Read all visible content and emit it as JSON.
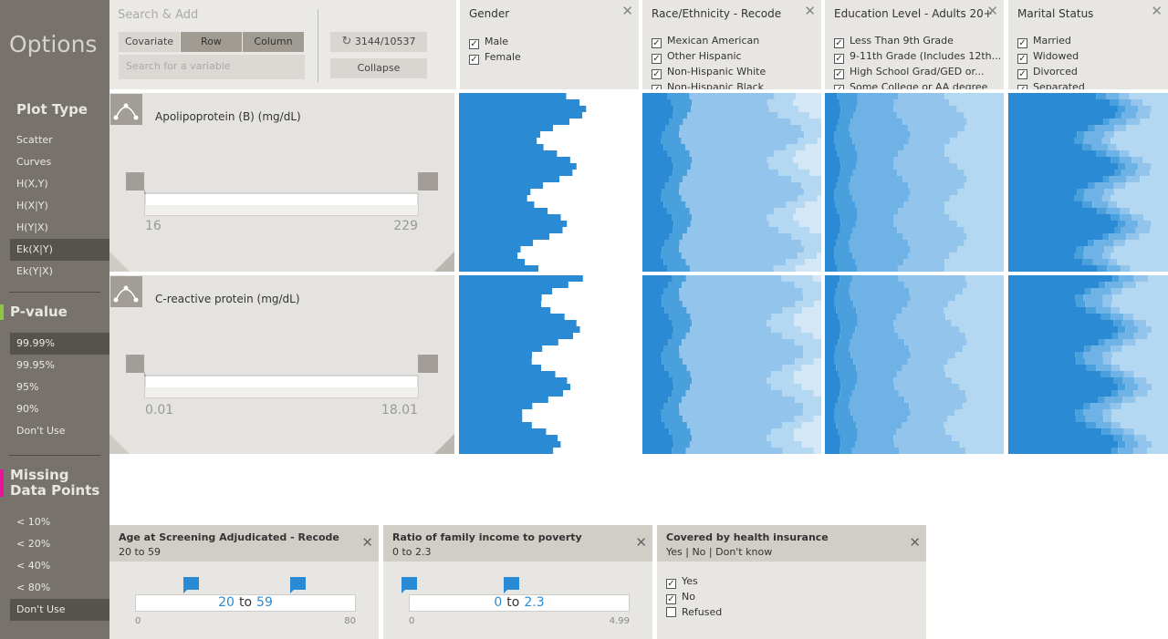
{
  "sidebar": {
    "title": "Options",
    "sections": [
      {
        "title": "Plot Type",
        "items": [
          "Scatter",
          "Curves",
          "H(X,Y)",
          "H(X|Y)",
          "H(Y|X)",
          "Ek(X|Y)",
          "Ek(Y|X)"
        ],
        "selected": 5
      },
      {
        "title": "P-value",
        "items": [
          "99.99%",
          "99.95%",
          "95%",
          "90%",
          "Don't Use"
        ],
        "selected": 0,
        "marker": "#8dc63f"
      },
      {
        "title": "Missing Data Points",
        "items": [
          "< 10%",
          "< 20%",
          "< 40%",
          "< 80%",
          "Don't Use"
        ],
        "selected": 4,
        "marker": "#e6139b"
      }
    ]
  },
  "toolbar": {
    "search_title": "Search & Add",
    "buttons": [
      "Covariate",
      "Row",
      "Column"
    ],
    "active_button": 0,
    "search_placeholder": "Search for a variable",
    "count": "3144/10537",
    "collapse": "Collapse"
  },
  "columns": [
    {
      "title": "Gender",
      "options": [
        "Male",
        "Female"
      ]
    },
    {
      "title": "Race/Ethnicity - Recode",
      "options": [
        "Mexican American",
        "Other Hispanic",
        "Non-Hispanic White",
        "Non-Hispanic Black"
      ]
    },
    {
      "title": "Education Level - Adults 20+",
      "options": [
        "Less Than 9th Grade",
        "9-11th Grade (Includes 12th...",
        "High School Grad/GED or...",
        "Some College or AA degree"
      ]
    },
    {
      "title": "Marital Status",
      "options": [
        "Married",
        "Widowed",
        "Divorced",
        "Separated"
      ]
    }
  ],
  "rows": [
    {
      "label": "Apolipoprotein (B) (mg/dL)",
      "min": "16",
      "max": "229"
    },
    {
      "label": "C-reactive protein (mg/dL)",
      "min": "0.01",
      "max": "18.01"
    }
  ],
  "filters": [
    {
      "title": "Age at Screening Adjudicated - Recode",
      "summary": "20 to 59",
      "type": "range",
      "low": "20",
      "joiner": "to",
      "high": "59",
      "min": "0",
      "max": "80"
    },
    {
      "title": "Ratio of family income to poverty",
      "summary": "0 to 2.3",
      "type": "range",
      "low": "0",
      "joiner": "to",
      "high": "2.3",
      "min": "0",
      "max": "4.99"
    },
    {
      "title": "Covered by health insurance",
      "summary": "Yes | No | Don't know",
      "type": "checklist",
      "options": [
        {
          "label": "Yes",
          "checked": true
        },
        {
          "label": "No",
          "checked": true
        },
        {
          "label": "Refused",
          "checked": false
        }
      ]
    }
  ]
}
